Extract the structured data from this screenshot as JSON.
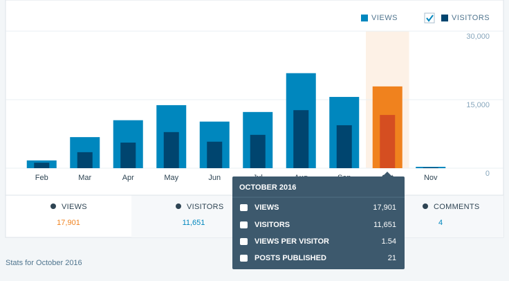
{
  "chart_data": {
    "type": "bar",
    "categories": [
      "Feb",
      "Mar",
      "Apr",
      "May",
      "Jun",
      "Jul",
      "Aug",
      "Sep",
      "Oct",
      "Nov"
    ],
    "series": [
      {
        "name": "VIEWS",
        "color": "#0087be",
        "highlight_color": "#f0821e",
        "values": [
          1700,
          6800,
          10500,
          13800,
          10200,
          12300,
          20800,
          15600,
          17901,
          300
        ]
      },
      {
        "name": "VISITORS",
        "color": "#00456f",
        "highlight_color": "#d54e21",
        "values": [
          1200,
          3500,
          5600,
          7900,
          5800,
          7300,
          12700,
          9400,
          11651,
          150
        ]
      }
    ],
    "ylim": [
      0,
      30000
    ],
    "yticks": [
      0,
      {
        "value": 15000,
        "label": "15,000"
      },
      {
        "value": 30000,
        "label": "30,000"
      }
    ],
    "grid": true,
    "legend": "top-right",
    "highlight": "Oct",
    "highlight_band_color": "#fdf1e6"
  },
  "tabs": [
    {
      "label": "VIEWS",
      "value": "17,901"
    },
    {
      "label": "VISITORS",
      "value": "11,651"
    },
    {
      "label": "COMMENTS",
      "value": "4"
    }
  ],
  "tooltip": {
    "title": "OCTOBER 2016",
    "rows": [
      {
        "label": "VIEWS",
        "value": "17,901"
      },
      {
        "label": "VISITORS",
        "value": "11,651"
      },
      {
        "label": "VIEWS PER VISITOR",
        "value": "1.54"
      },
      {
        "label": "POSTS PUBLISHED",
        "value": "21"
      }
    ]
  },
  "heading": "Stats for October 2016"
}
